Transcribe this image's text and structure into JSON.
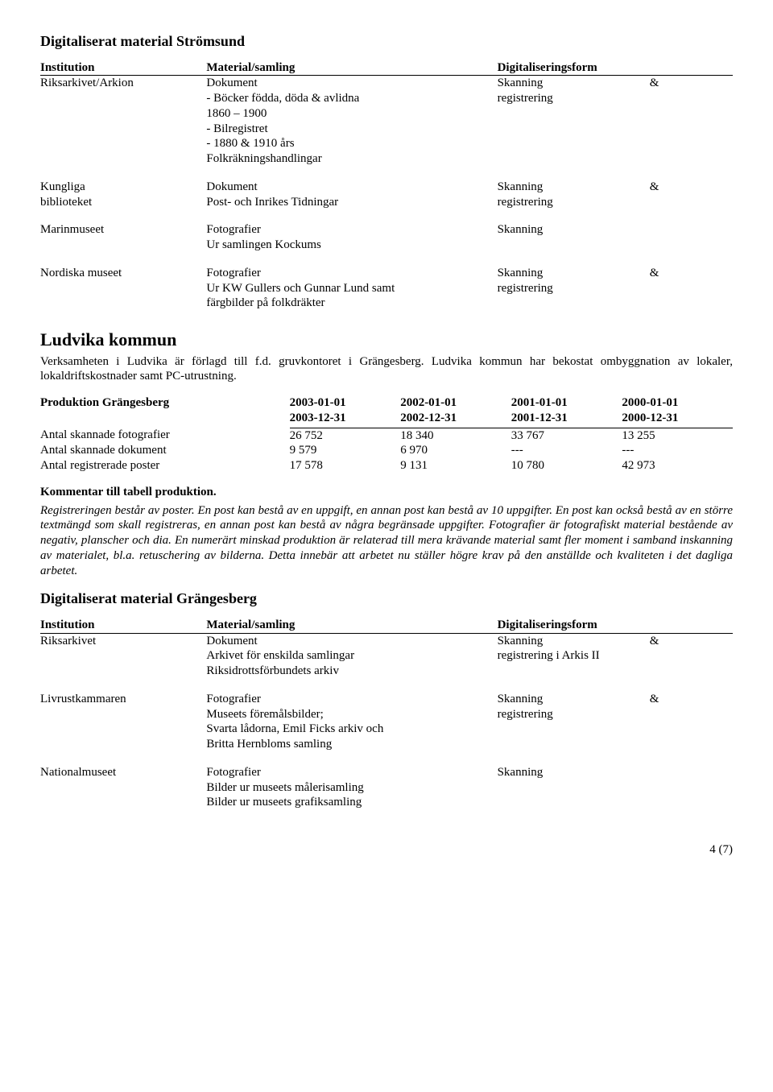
{
  "title1": "Digitaliserat material Strömsund",
  "table_headers": {
    "institution": "Institution",
    "material": "Material/samling",
    "form": "Digitaliseringsform"
  },
  "stromsund_rows": [
    {
      "institution": "Riksarkivet/Arkion",
      "material": "Dokument\n- Böcker födda, döda & avlidna\n1860 – 1900\n- Bilregistret\n- 1880 & 1910 års\nFolkräkningshandlingar",
      "form": "Skanning\nregistrering",
      "amp": "&"
    },
    {
      "institution": "Kungliga\nbiblioteket",
      "material": "Dokument\nPost- och Inrikes Tidningar",
      "form": "Skanning\nregistrering",
      "amp": "&"
    },
    {
      "institution": "Marinmuseet",
      "material": "Fotografier\nUr samlingen Kockums",
      "form": "Skanning",
      "amp": ""
    },
    {
      "institution": "Nordiska museet",
      "material": "Fotografier\nUr KW Gullers och Gunnar Lund samt\nfärgbilder på folkdräkter",
      "form": "Skanning\nregistrering",
      "amp": "&"
    }
  ],
  "ludvika_heading": "Ludvika kommun",
  "ludvika_para": "Verksamheten i Ludvika är förlagd till f.d. gruvkontoret i Grängesberg. Ludvika kommun har bekostat ombyggnation av lokaler, lokaldriftskostnader samt PC-utrustning.",
  "prod_title": "Produktion Grängesberg",
  "prod_years": [
    {
      "top": "2003-01-01",
      "bottom": "2003-12-31"
    },
    {
      "top": "2002-01-01",
      "bottom": "2002-12-31"
    },
    {
      "top": "2001-01-01",
      "bottom": "2001-12-31"
    },
    {
      "top": "2000-01-01",
      "bottom": "2000-12-31"
    }
  ],
  "prod_rows": [
    {
      "label": "Antal skannade fotografier",
      "v": [
        "26 752",
        "18 340",
        "33 767",
        "13 255"
      ]
    },
    {
      "label": "Antal skannade dokument",
      "v": [
        " 9 579",
        " 6 970",
        "---",
        "---"
      ]
    },
    {
      "label": "Antal registrerade poster",
      "v": [
        "17 578",
        " 9 131",
        "10 780",
        " 42 973"
      ]
    }
  ],
  "kommentar_title": "Kommentar till tabell produktion.",
  "kommentar_text": "Registreringen består av poster. En post kan bestå av en uppgift, en annan post kan bestå av 10 uppgifter. En post kan också bestå av en större textmängd som skall registreras, en annan post kan bestå av några begränsade uppgifter. Fotografier är fotografiskt material bestående av negativ, planscher och dia. En numerärt minskad produktion är relaterad till mera krävande material samt fler moment i samband inskanning av materialet, bl.a. retuschering av bilderna. Detta innebär att arbetet nu ställer högre krav på den anställde och kvaliteten i det dagliga arbetet.",
  "title2": "Digitaliserat material Grängesberg",
  "grangesberg_rows": [
    {
      "institution": "Riksarkivet",
      "material": "Dokument\nArkivet för enskilda samlingar\nRiksidrottsförbundets arkiv",
      "form": "Skanning\nregistrering i Arkis II",
      "amp": "&"
    },
    {
      "institution": "Livrustkammaren",
      "material": "Fotografier\nMuseets föremålsbilder;\nSvarta lådorna, Emil Ficks arkiv och\nBritta Hernbloms samling",
      "form": "Skanning\nregistrering",
      "amp": "&"
    },
    {
      "institution": "Nationalmuseet",
      "material": "Fotografier\nBilder ur museets målerisamling\nBilder ur  museets grafiksamling",
      "form": "Skanning",
      "amp": ""
    }
  ],
  "pagenum": "4 (7)"
}
